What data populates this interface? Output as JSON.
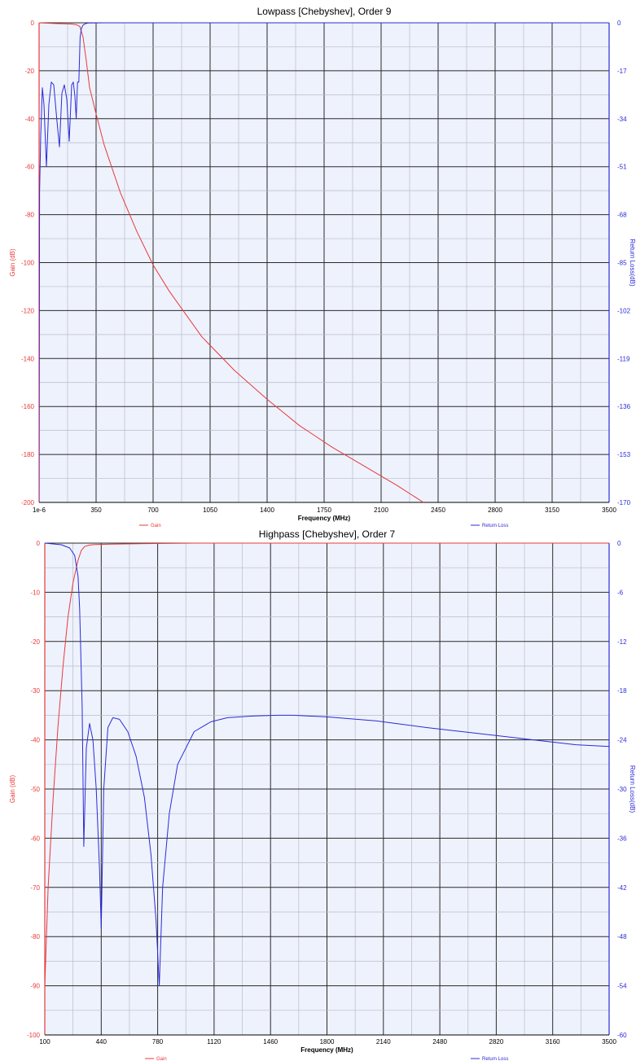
{
  "chart_data": [
    {
      "type": "line",
      "title": "Lowpass [Chebyshev], Order 9",
      "xlabel": "Frequency (MHz)",
      "ylabel": "Gain (dB)",
      "y2label": "Return Loss(dB)",
      "xlim": [
        0,
        3500
      ],
      "ylim": [
        -200,
        0
      ],
      "y2lim": [
        -170,
        0
      ],
      "x_ticks": [
        "1e-6",
        "350",
        "700",
        "1050",
        "1400",
        "1750",
        "2100",
        "2450",
        "2800",
        "3150",
        "3500"
      ],
      "y_ticks": [
        "0",
        "-20",
        "-40",
        "-60",
        "-80",
        "-100",
        "-120",
        "-140",
        "-160",
        "-180",
        "-200"
      ],
      "y2_ticks": [
        "0",
        "-17",
        "-34",
        "-51",
        "-68",
        "-85",
        "-102",
        "-119",
        "-136",
        "-153",
        "-170"
      ],
      "grid": true,
      "legend_position": "bottom",
      "colors": {
        "gain": "#e8393a",
        "return_loss": "#2b2bd6",
        "plot_bg": "#eef2fd"
      },
      "series": [
        {
          "name": "Gain",
          "axis": "left",
          "x": [
            0,
            100,
            200,
            230,
            250,
            270,
            290,
            310,
            350,
            400,
            500,
            600,
            700,
            800,
            1000,
            1200,
            1400,
            1600,
            1800,
            2000,
            2200,
            2360
          ],
          "y": [
            0,
            -0.3,
            -0.5,
            -0.8,
            -1.5,
            -6,
            -16,
            -27,
            -38,
            -51,
            -71,
            -87,
            -101,
            -112,
            -131,
            -145,
            -157,
            -168,
            -177,
            -185,
            -193,
            -200
          ]
        },
        {
          "name": "Return Loss",
          "axis": "right",
          "x": [
            0,
            3,
            10,
            20,
            30,
            45,
            60,
            75,
            90,
            110,
            125,
            140,
            155,
            170,
            185,
            200,
            210,
            220,
            228,
            236,
            244,
            252,
            260,
            270,
            285,
            300,
            400,
            800,
            1500,
            2500,
            3500
          ],
          "y": [
            -170,
            -60,
            -40,
            -23,
            -29,
            -51,
            -29,
            -21,
            -22,
            -35,
            -44,
            -25,
            -22,
            -27,
            -42,
            -22,
            -21,
            -26,
            -34,
            -21,
            -21,
            -5,
            -2,
            -0.8,
            -0.3,
            -0.1,
            0,
            0,
            0,
            0,
            0
          ]
        }
      ]
    },
    {
      "type": "line",
      "title": "Highpass [Chebyshev], Order 7",
      "xlabel": "Frequency (MHz)",
      "ylabel": "Gain (dB)",
      "y2label": "Return Loss(dB)",
      "xlim": [
        100,
        3500
      ],
      "ylim": [
        -100,
        0
      ],
      "y2lim": [
        -60,
        0
      ],
      "x_ticks": [
        "100",
        "440",
        "780",
        "1120",
        "1460",
        "1800",
        "2140",
        "2480",
        "2820",
        "3160",
        "3500"
      ],
      "y_ticks": [
        "0",
        "-10",
        "-20",
        "-30",
        "-40",
        "-50",
        "-60",
        "-70",
        "-80",
        "-90",
        "-100"
      ],
      "y2_ticks": [
        "0",
        "-6",
        "-12",
        "-18",
        "-24",
        "-30",
        "-36",
        "-42",
        "-48",
        "-54",
        "-60"
      ],
      "grid": true,
      "legend_position": "bottom",
      "colors": {
        "gain": "#e8393a",
        "return_loss": "#2b2bd6",
        "plot_bg": "#eef2fd"
      },
      "series": [
        {
          "name": "Gain",
          "axis": "left",
          "x": [
            100,
            120,
            150,
            180,
            210,
            240,
            270,
            300,
            320,
            340,
            370,
            400,
            500,
            700,
            1000,
            3500
          ],
          "y": [
            -90,
            -70,
            -52,
            -37,
            -25,
            -15,
            -8,
            -3.5,
            -1.5,
            -0.7,
            -0.4,
            -0.3,
            -0.2,
            -0.1,
            0,
            0
          ]
        },
        {
          "name": "Return Loss",
          "axis": "right",
          "x": [
            100,
            200,
            250,
            280,
            300,
            310,
            325,
            335,
            350,
            370,
            390,
            410,
            430,
            440,
            455,
            480,
            510,
            550,
            600,
            650,
            700,
            740,
            770,
            790,
            810,
            850,
            900,
            1000,
            1100,
            1200,
            1350,
            1500,
            1600,
            1800,
            2100,
            2400,
            2700,
            3000,
            3300,
            3500
          ],
          "y": [
            0,
            -0.2,
            -0.6,
            -1.5,
            -4,
            -8,
            -20,
            -37,
            -25,
            -22,
            -24,
            -30,
            -40,
            -47,
            -30,
            -22.5,
            -21.3,
            -21.5,
            -23,
            -26,
            -31,
            -38,
            -46,
            -54,
            -42,
            -33,
            -27,
            -23,
            -21.8,
            -21.3,
            -21.1,
            -21,
            -21,
            -21.2,
            -21.7,
            -22.5,
            -23.2,
            -23.9,
            -24.6,
            -24.8
          ]
        }
      ]
    }
  ]
}
